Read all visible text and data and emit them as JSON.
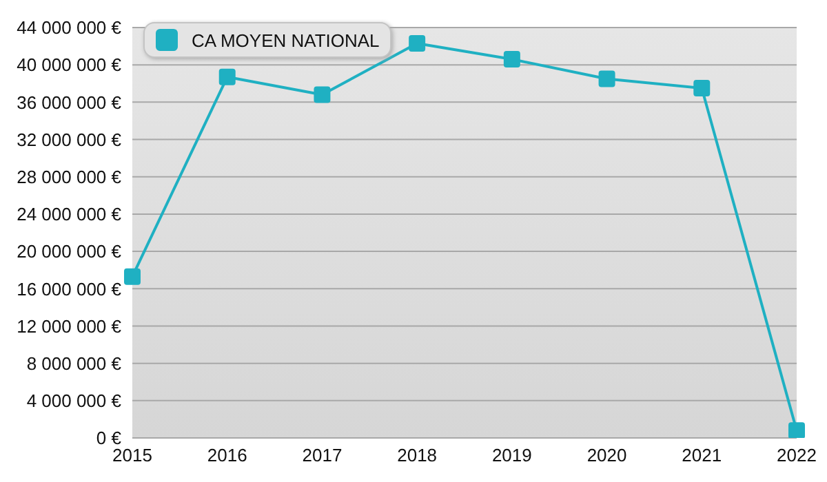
{
  "chart_data": {
    "type": "line",
    "categories": [
      "2015",
      "2016",
      "2017",
      "2018",
      "2019",
      "2020",
      "2021",
      "2022"
    ],
    "series": [
      {
        "name": "CA MOYEN NATIONAL",
        "color": "#1fb0c2",
        "values": [
          17300000,
          38700000,
          36800000,
          42300000,
          40600000,
          38500000,
          37500000,
          800000
        ]
      }
    ],
    "ylim": [
      0,
      44000000
    ],
    "yticks": [
      {
        "value": 0,
        "label": "0 €"
      },
      {
        "value": 4000000,
        "label": "4 000 000 €"
      },
      {
        "value": 8000000,
        "label": "8 000 000 €"
      },
      {
        "value": 12000000,
        "label": "12 000 000 €"
      },
      {
        "value": 16000000,
        "label": "16 000 000 €"
      },
      {
        "value": 20000000,
        "label": "20 000 000 €"
      },
      {
        "value": 24000000,
        "label": "24 000 000 €"
      },
      {
        "value": 28000000,
        "label": "28 000 000 €"
      },
      {
        "value": 32000000,
        "label": "32 000 000 €"
      },
      {
        "value": 36000000,
        "label": "36 000 000 €"
      },
      {
        "value": 40000000,
        "label": "40 000 000 €"
      },
      {
        "value": 44000000,
        "label": "44 000 000 €"
      }
    ],
    "grid": "y",
    "legend": "top left",
    "marker": "square",
    "line_style": "solid"
  }
}
